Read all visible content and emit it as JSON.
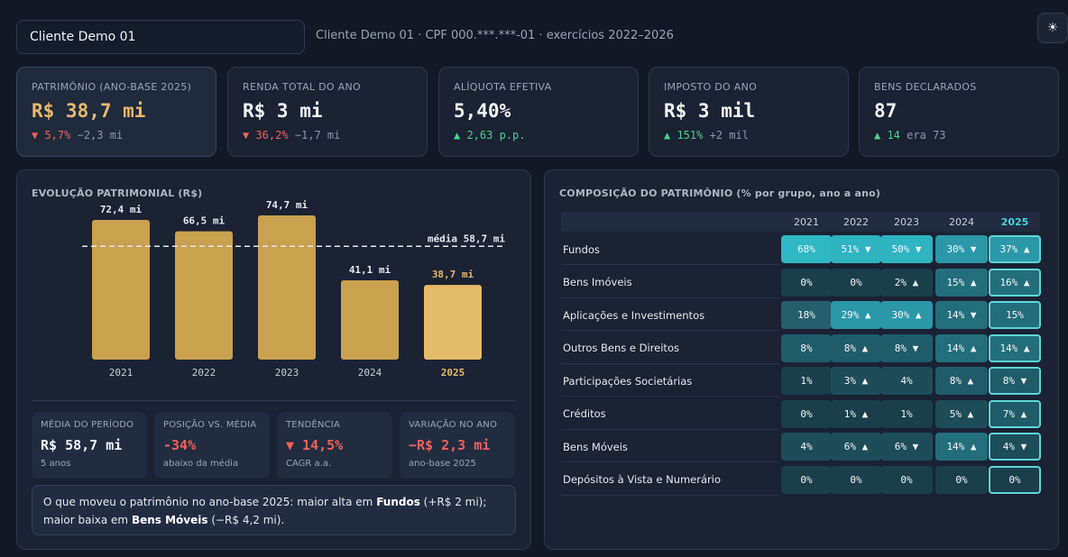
{
  "header": {
    "client_name": "Cliente Demo 01",
    "client_info": "Cliente Demo 01 · CPF 000.***.***-01 · exercícios 2022–2026",
    "theme_icon": "sun-icon"
  },
  "kpis": [
    {
      "label": "PATRIMÔNIO (ANO-BASE 2025)",
      "value": "R$ 38,7 mi",
      "delta": "▼ 5,7%",
      "delta_dir": "down",
      "extra": "−2,3 mi"
    },
    {
      "label": "RENDA TOTAL DO ANO",
      "value": "R$ 3 mi",
      "delta": "▼ 36,2%",
      "delta_dir": "down",
      "extra": "−1,7 mi"
    },
    {
      "label": "ALÍQUOTA EFETIVA",
      "value": "5,40%",
      "delta": "▲ 2,63 p.p.",
      "delta_dir": "up",
      "extra": ""
    },
    {
      "label": "IMPOSTO DO ANO",
      "value": "R$ 3 mil",
      "delta": "▲ 151%",
      "delta_dir": "up",
      "extra": "+2 mil"
    },
    {
      "label": "BENS DECLARADOS",
      "value": "87",
      "delta": "▲ 14",
      "delta_dir": "up",
      "extra": "era 73"
    }
  ],
  "evolucao": {
    "title": "EVOLUÇÃO PATRIMONIAL (R$)",
    "stats": [
      {
        "label": "MÉDIA DO PERÍODO",
        "value": "R$ 58,7 mi",
        "sub": "5 anos"
      },
      {
        "label": "POSIÇÃO VS. MÉDIA",
        "value": "-34%",
        "sub": "abaixo da média"
      },
      {
        "label": "TENDÊNCIA",
        "value": "▼ 14,5%",
        "sub": "CAGR a.a."
      },
      {
        "label": "VARIAÇÃO NO ANO",
        "value": "−R$ 2,3 mi",
        "sub": "ano-base 2025"
      }
    ],
    "insight_pre": "O que moveu o patrimônio no ano-base 2025: maior alta em ",
    "insight_up": "Fundos",
    "insight_mid": " (+R$ 2 mi); maior baixa em ",
    "insight_down": "Bens Móveis",
    "insight_post": " (−R$ 4,2 mi)."
  },
  "chart_data": {
    "type": "bar",
    "categories": [
      "2021",
      "2022",
      "2023",
      "2024",
      "2025"
    ],
    "values": [
      72.4,
      66.5,
      74.7,
      41.1,
      38.7
    ],
    "value_labels": [
      "72,4 mi",
      "66,5 mi",
      "74,7 mi",
      "41,1 mi",
      "38,7 mi"
    ],
    "title": "EVOLUÇÃO PATRIMONIAL (R$)",
    "reference_line": {
      "value": 58.7,
      "label": "média 58,7 mi"
    },
    "highlight": "2025",
    "ylim": [
      0,
      80
    ],
    "colors": {
      "bar": "#c9a14f",
      "highlight": "#e3bb6a"
    }
  },
  "composicao": {
    "title": "COMPOSIÇÃO DO PATRIMÔNIO (% por grupo, ano a ano)",
    "years": [
      "2021",
      "2022",
      "2023",
      "2024",
      "2025"
    ],
    "rows": [
      {
        "label": "Fundos",
        "values": [
          68,
          51,
          50,
          30,
          37
        ],
        "text": [
          "68%",
          "51% ▼",
          "50% ▼",
          "30% ▼",
          "37% ▲"
        ]
      },
      {
        "label": "Bens Imóveis",
        "values": [
          0,
          0,
          2,
          15,
          16
        ],
        "text": [
          "0%",
          "0%",
          "2% ▲",
          "15% ▲",
          "16% ▲"
        ]
      },
      {
        "label": "Aplicações e Investimentos",
        "values": [
          18,
          29,
          30,
          14,
          15
        ],
        "text": [
          "18%",
          "29% ▲",
          "30% ▲",
          "14% ▼",
          "15%"
        ]
      },
      {
        "label": "Outros Bens e Direitos",
        "values": [
          8,
          8,
          8,
          14,
          14
        ],
        "text": [
          "8%",
          "8% ▲",
          "8% ▼",
          "14% ▲",
          "14% ▲"
        ]
      },
      {
        "label": "Participações Societárias",
        "values": [
          1,
          3,
          4,
          8,
          8
        ],
        "text": [
          "1%",
          "3% ▲",
          "4%",
          "8% ▲",
          "8% ▼"
        ]
      },
      {
        "label": "Créditos",
        "values": [
          0,
          1,
          1,
          5,
          7
        ],
        "text": [
          "0%",
          "1% ▲",
          "1%",
          "5% ▲",
          "7% ▲"
        ]
      },
      {
        "label": "Bens Móveis",
        "values": [
          4,
          6,
          6,
          14,
          4
        ],
        "text": [
          "4%",
          "6% ▲",
          "6% ▼",
          "14% ▲",
          "4% ▼"
        ]
      },
      {
        "label": "Depósitos à Vista e Numerário",
        "values": [
          0,
          0,
          0,
          0,
          0
        ],
        "text": [
          "0%",
          "0%",
          "0%",
          "0%",
          "0%"
        ]
      }
    ]
  }
}
